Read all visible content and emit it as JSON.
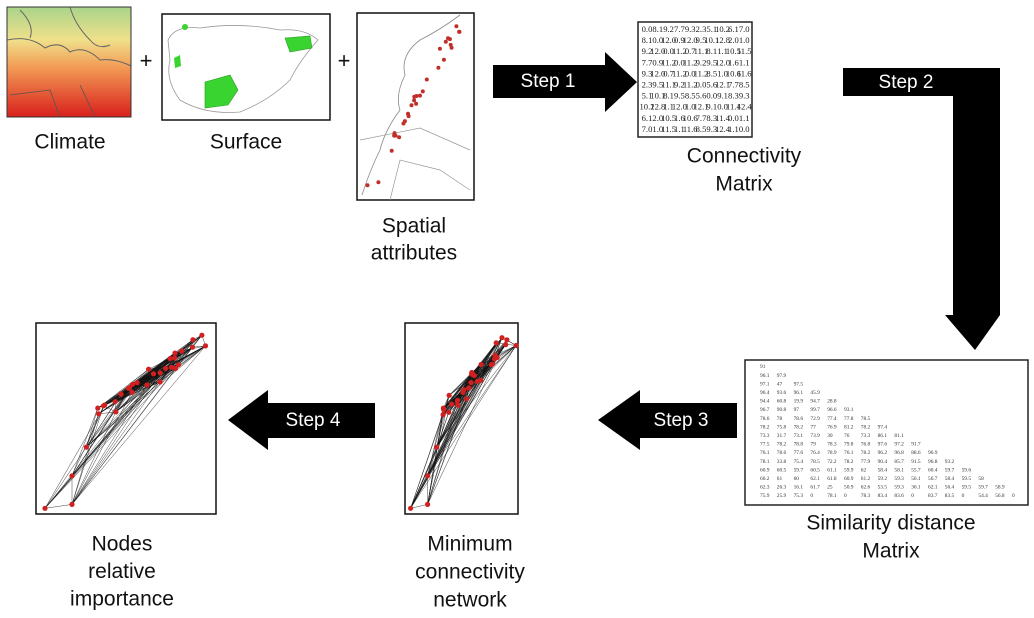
{
  "inputs": [
    {
      "label": [
        "Climate"
      ]
    },
    {
      "label": [
        "Surface"
      ]
    },
    {
      "label": [
        "Spatial",
        "attributes"
      ]
    }
  ],
  "plus_signs": [
    "+",
    "+"
  ],
  "steps": [
    "Step 1",
    "Step 2",
    "Step 3",
    "Step 4"
  ],
  "connectivity_matrix": {
    "label": [
      "Connectivity",
      "Matrix"
    ],
    "rows": [
      [
        "0.0",
        "8.1",
        "9.2",
        "7.7",
        "9.3",
        "2.3",
        "5.1",
        "10.2",
        "6.1",
        "7.0"
      ],
      [
        "8.1",
        "0.0",
        "12.0",
        "0.9",
        "12.0",
        "9.5",
        "10.1",
        "12.8",
        "2.0",
        "1.0"
      ],
      [
        "9.2",
        "12.0",
        "0.0",
        "11.2",
        "0.7",
        "11.1",
        "8.1",
        "1.1",
        "10.5",
        "11.5"
      ],
      [
        "7.7",
        "0.9",
        "11.2",
        "0.0",
        "11.2",
        "9.2",
        "9.5",
        "12.0",
        "1.6",
        "1.1"
      ],
      [
        "9.3",
        "12.0",
        "0.7",
        "11.2",
        "0.0",
        "11.2",
        "8.5",
        "1.0",
        "10.6",
        "11.6"
      ],
      [
        "2.3",
        "9.5",
        "11.1",
        "9.2",
        "11.2",
        "0.0",
        "5.6",
        "12.1",
        "7.7",
        "8.5"
      ],
      [
        "5.1",
        "10.1",
        "8.1",
        "9.5",
        "8.5",
        "5.6",
        "0.0",
        "9.1",
        "8.3",
        "9.3"
      ],
      [
        "10.2",
        "12.8",
        "1.1",
        "12.0",
        "1.0",
        "12.1",
        "9.1",
        "0.0",
        "11.4",
        "12.4"
      ],
      [
        "6.1",
        "2.0",
        "10.5",
        "1.6",
        "10.6",
        "7.7",
        "8.3",
        "11.4",
        "0.0",
        "1.1"
      ],
      [
        "7.0",
        "1.0",
        "11.5",
        "1.1",
        "11.6",
        "8.5",
        "9.3",
        "12.4",
        "1.1",
        "0.0"
      ]
    ]
  },
  "similarity_matrix": {
    "label": [
      "Similarity distance",
      "Matrix"
    ],
    "rows": [
      [
        "91"
      ],
      [
        "96.1",
        "97.9"
      ],
      [
        "97.1",
        "47",
        "97.5"
      ],
      [
        "96.4",
        "93.6",
        "96.1",
        "45.9"
      ],
      [
        "94.4",
        "60.8",
        "19.9",
        "94.7",
        "28.8"
      ],
      [
        "96.7",
        "90.8",
        "97",
        "99.7",
        "96.6",
        "93.1"
      ],
      [
        "78.6",
        "78",
        "78.6",
        "72.9",
        "77.4",
        "77.8",
        "78.5"
      ],
      [
        "78.2",
        "75.8",
        "78.2",
        "77",
        "76.9",
        "81.2",
        "78.2",
        "97.4"
      ],
      [
        "73.3",
        "31.7",
        "73.1",
        "73.9",
        "30",
        "76",
        "73.3",
        "86.1",
        "81.1"
      ],
      [
        "77.5",
        "78.2",
        "78.8",
        "79",
        "78.3",
        "79.8",
        "76.8",
        "97.6",
        "97.2",
        "91.7"
      ],
      [
        "76.1",
        "78.6",
        "77.6",
        "76.4",
        "78.9",
        "76.1",
        "78.2",
        "96.2",
        "96.8",
        "88.6",
        "96.9"
      ],
      [
        "78.1",
        "33.8",
        "75.4",
        "78.5",
        "72.2",
        "78.2",
        "77.9",
        "90.4",
        "85.7",
        "91.5",
        "96.8",
        "93.2"
      ],
      [
        "60.9",
        "60.5",
        "59.7",
        "60.5",
        "61.1",
        "59.9",
        "62",
        "58.4",
        "58.1",
        "55.7",
        "60.4",
        "59.7",
        "59.6"
      ],
      [
        "60.2",
        "61",
        "60",
        "62.1",
        "61.8",
        "60.9",
        "61.2",
        "59.2",
        "59.3",
        "56.1",
        "56.7",
        "58.4",
        "59.5",
        "58"
      ],
      [
        "62.3",
        "26.3",
        "16.1",
        "61.7",
        "25",
        "50.9",
        "62.6",
        "53.5",
        "59.3",
        "36.1",
        "62.1",
        "56.4",
        "59.5",
        "59.7",
        "58.9"
      ],
      [
        "75.9",
        "25.9",
        "75.3",
        "0",
        "78.1",
        "0",
        "78.3",
        "83.4",
        "83.6",
        "0",
        "83.7",
        "83.5",
        "0",
        "54.4",
        "56.8",
        "0"
      ]
    ]
  },
  "outputs": [
    {
      "label": [
        "Minimum",
        "connectivity",
        "network"
      ]
    },
    {
      "label": [
        "Nodes",
        "relative",
        "importance"
      ]
    }
  ]
}
